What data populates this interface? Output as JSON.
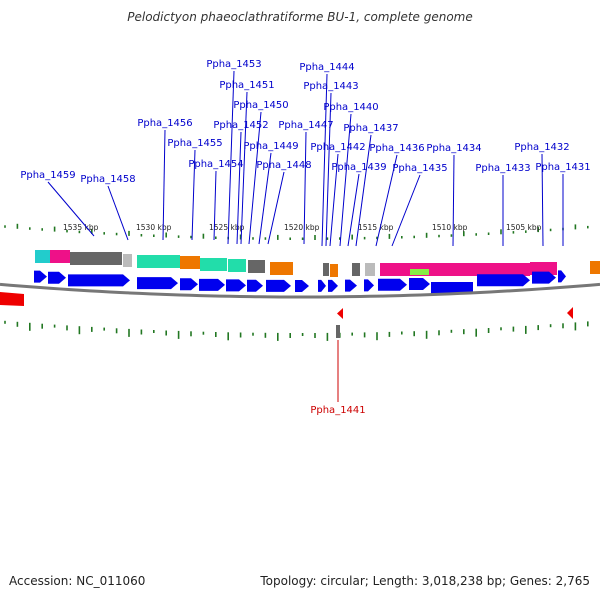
{
  "title": "Pelodictyon phaeoclathratiforme BU-1, complete genome",
  "footer": {
    "accession": "Accession: NC_011060",
    "stats": "Topology: circular; Length: 3,018,238 bp; Genes: 2,765"
  },
  "scale_labels": [
    "1535 kbp",
    "1530 kbp",
    "1525 kbp",
    "1520 kbp",
    "1515 kbp",
    "1510 kbp",
    "1505 kbp"
  ],
  "gene_labels_top": [
    "Ppha_1459",
    "Ppha_1458",
    "Ppha_1456",
    "Ppha_1455",
    "Ppha_1454",
    "Ppha_1453",
    "Ppha_1452",
    "Ppha_1451",
    "Ppha_1450",
    "Ppha_1449",
    "Ppha_1448",
    "Ppha_1447",
    "Ppha_1444",
    "Ppha_1443",
    "Ppha_1442",
    "Ppha_1440",
    "Ppha_1439",
    "Ppha_1437",
    "Ppha_1436",
    "Ppha_1435",
    "Ppha_1434",
    "Ppha_1433",
    "Ppha_1432",
    "Ppha_1431"
  ],
  "gene_labels_bottom": [
    "Ppha_1441"
  ],
  "colors": {
    "forward_gene": "#0000ee",
    "reverse_gene": "#ee0000",
    "top_label": "#0000cc",
    "bottom_label": "#cc0000",
    "backbone": "#777777",
    "gc_tick": "#227722",
    "cog_cyan": "#22cccc",
    "cog_magenta": "#ee1188",
    "cog_gray": "#666666",
    "cog_lightgray": "#bbbbbb",
    "cog_teal": "#22ddaa",
    "cog_orange": "#ee7700",
    "cog_lime": "#88ee44"
  }
}
